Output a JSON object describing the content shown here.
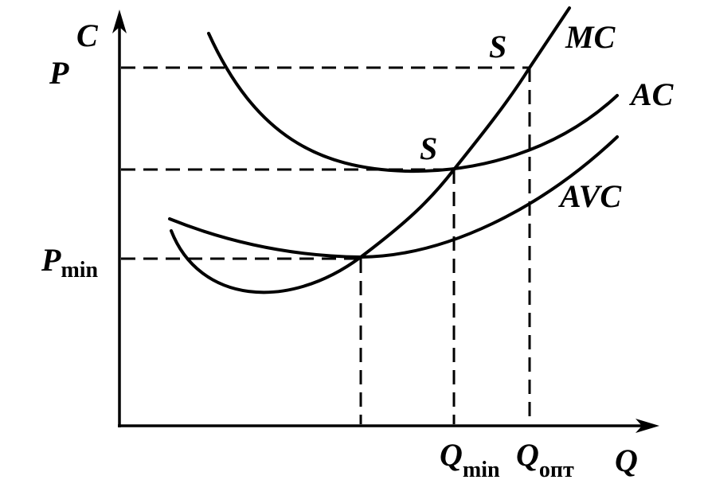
{
  "axes": {
    "y_label": "C",
    "x_label": "Q"
  },
  "price_labels": [
    {
      "text": "P"
    },
    {
      "text": "P",
      "subscript": "min"
    }
  ],
  "curves": [
    {
      "label": "MC"
    },
    {
      "label": "AC"
    },
    {
      "label": "AVC"
    }
  ],
  "points": [
    {
      "label": "S"
    },
    {
      "label": "S"
    }
  ],
  "quantity_labels": [
    {
      "text": "Q",
      "subscript": "min"
    },
    {
      "text": "Q",
      "subscript": "опт"
    }
  ]
}
